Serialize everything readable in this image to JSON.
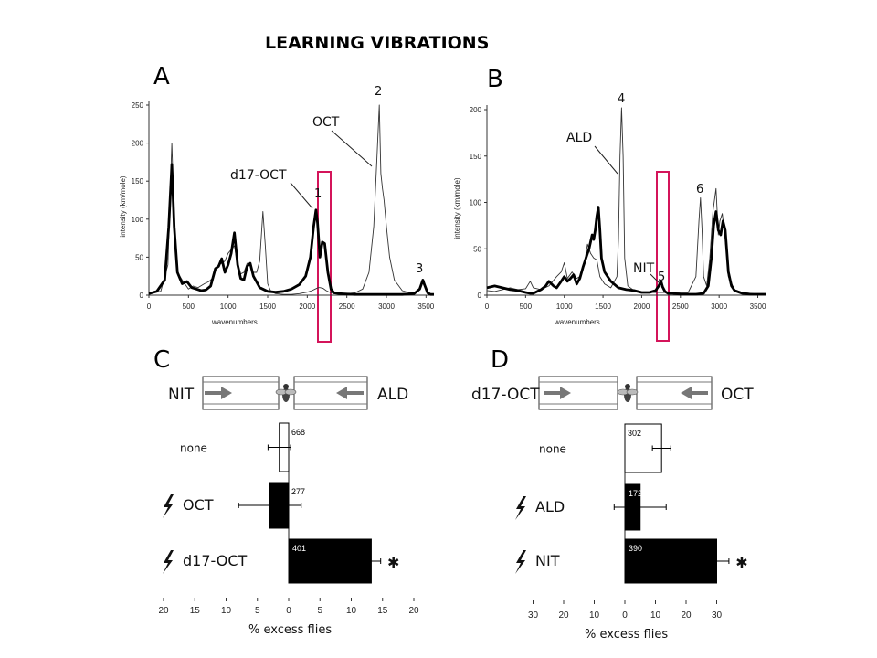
{
  "title": "LEARNING VIBRATIONS",
  "panels": {
    "A": {
      "letter": "A",
      "ylabel": "intensity (km/mole)",
      "xlabel": "wavenumbers",
      "labels": {
        "oct": "OCT",
        "d17": "d17-OCT",
        "p1": "1",
        "p2": "2",
        "p3": "3"
      }
    },
    "B": {
      "letter": "B",
      "ylabel": "intensity (km/mole)",
      "xlabel": "wavenumbers",
      "labels": {
        "ald": "ALD",
        "nit": "NIT",
        "p4": "4",
        "p5": "5",
        "p6": "6"
      }
    },
    "C": {
      "letter": "C",
      "left_odor": "NIT",
      "right_odor": "ALD",
      "xlabel": "% excess flies"
    },
    "D": {
      "letter": "D",
      "left_odor": "d17-OCT",
      "right_odor": "OCT",
      "xlabel": "% excess flies"
    }
  },
  "colors": {
    "highlight": "#d4145a",
    "bar_fill": "#000000",
    "arrow": "#777777"
  },
  "chart_data": [
    {
      "id": "A",
      "type": "line",
      "xlabel": "wavenumbers",
      "ylabel": "intensity (km/mole)",
      "xlim": [
        0,
        3600
      ],
      "ylim": [
        0,
        250
      ],
      "xticks": [
        0,
        500,
        1000,
        1500,
        2000,
        2500,
        3000,
        3500
      ],
      "yticks": [
        0,
        50,
        100,
        150,
        200,
        250
      ],
      "highlight_band": [
        2160,
        2310
      ],
      "series": [
        {
          "style": "thin",
          "label": "OCT",
          "x": [
            0,
            150,
            240,
            290,
            320,
            360,
            420,
            500,
            560,
            620,
            700,
            760,
            800,
            840,
            880,
            920,
            960,
            1000,
            1040,
            1080,
            1120,
            1160,
            1200,
            1240,
            1280,
            1320,
            1360,
            1400,
            1440,
            1470,
            1500,
            1540,
            1600,
            1700,
            1800,
            1900,
            2000,
            2060,
            2100,
            2140,
            2160,
            2200,
            2240,
            2300,
            2400,
            2500,
            2600,
            2700,
            2780,
            2840,
            2880,
            2910,
            2930,
            2950,
            2970,
            3000,
            3040,
            3100,
            3200,
            3300,
            3400,
            3440,
            3470,
            3500,
            3550,
            3600
          ],
          "y": [
            3,
            5,
            40,
            200,
            100,
            30,
            20,
            8,
            12,
            10,
            15,
            18,
            22,
            35,
            40,
            42,
            45,
            55,
            60,
            65,
            40,
            28,
            30,
            42,
            40,
            30,
            30,
            45,
            110,
            65,
            15,
            5,
            2,
            1,
            1,
            2,
            4,
            6,
            8,
            10,
            10,
            9,
            6,
            3,
            2,
            2,
            3,
            8,
            30,
            90,
            180,
            250,
            160,
            140,
            125,
            90,
            50,
            20,
            6,
            3,
            5,
            12,
            20,
            8,
            2,
            1
          ]
        },
        {
          "style": "thick",
          "label": "d17-OCT",
          "x": [
            0,
            100,
            200,
            250,
            290,
            320,
            360,
            420,
            480,
            540,
            600,
            660,
            720,
            780,
            840,
            880,
            920,
            960,
            1000,
            1040,
            1080,
            1120,
            1160,
            1200,
            1240,
            1280,
            1320,
            1400,
            1500,
            1600,
            1700,
            1800,
            1900,
            1980,
            2040,
            2080,
            2110,
            2130,
            2160,
            2190,
            2220,
            2260,
            2300,
            2340,
            2400,
            2600,
            2800,
            3000,
            3200,
            3350,
            3420,
            3460,
            3480,
            3520,
            3560,
            3600
          ],
          "y": [
            2,
            5,
            20,
            90,
            172,
            90,
            30,
            15,
            18,
            10,
            8,
            6,
            7,
            12,
            35,
            38,
            48,
            30,
            40,
            55,
            82,
            40,
            22,
            20,
            38,
            42,
            25,
            10,
            5,
            4,
            5,
            8,
            14,
            25,
            50,
            90,
            112,
            95,
            50,
            70,
            68,
            30,
            8,
            3,
            2,
            1,
            1,
            1,
            1,
            2,
            8,
            20,
            14,
            3,
            1,
            1
          ]
        }
      ]
    },
    {
      "id": "B",
      "type": "line",
      "xlabel": "wavenumbers",
      "ylabel": "intensity (km/mole)",
      "xlim": [
        0,
        3600
      ],
      "ylim": [
        0,
        200
      ],
      "xticks": [
        0,
        500,
        1000,
        1500,
        2000,
        2500,
        3000,
        3500
      ],
      "yticks": [
        0,
        50,
        100,
        150,
        200
      ],
      "highlight_band": [
        2200,
        2320
      ],
      "series": [
        {
          "style": "thin",
          "label": "ALD",
          "x": [
            0,
            100,
            200,
            300,
            400,
            500,
            560,
            600,
            700,
            800,
            900,
            960,
            1000,
            1040,
            1100,
            1160,
            1200,
            1260,
            1300,
            1340,
            1380,
            1420,
            1460,
            1520,
            1600,
            1680,
            1700,
            1720,
            1740,
            1760,
            1780,
            1820,
            1900,
            2000,
            2100,
            2200,
            2400,
            2600,
            2700,
            2740,
            2760,
            2780,
            2800,
            2840,
            2880,
            2920,
            2960,
            2990,
            3010,
            3040,
            3080,
            3120,
            3200,
            3300,
            3400,
            3500,
            3600
          ],
          "y": [
            5,
            4,
            6,
            8,
            6,
            7,
            15,
            8,
            6,
            10,
            20,
            25,
            35,
            18,
            25,
            18,
            20,
            35,
            55,
            45,
            40,
            38,
            20,
            12,
            8,
            20,
            60,
            150,
            202,
            150,
            40,
            10,
            5,
            3,
            3,
            3,
            3,
            3,
            20,
            80,
            105,
            70,
            20,
            10,
            40,
            90,
            115,
            65,
            80,
            88,
            60,
            20,
            6,
            3,
            2,
            1,
            1
          ]
        },
        {
          "style": "thick",
          "label": "NIT",
          "x": [
            0,
            100,
            200,
            300,
            400,
            500,
            560,
            600,
            650,
            700,
            760,
            800,
            860,
            900,
            960,
            1000,
            1040,
            1080,
            1120,
            1160,
            1200,
            1240,
            1280,
            1320,
            1360,
            1380,
            1400,
            1420,
            1440,
            1460,
            1480,
            1520,
            1600,
            1700,
            1800,
            1900,
            2000,
            2100,
            2180,
            2220,
            2250,
            2270,
            2300,
            2340,
            2400,
            2500,
            2600,
            2700,
            2800,
            2860,
            2900,
            2930,
            2960,
            2990,
            3020,
            3050,
            3080,
            3120,
            3160,
            3200,
            3300,
            3400,
            3500,
            3600
          ],
          "y": [
            8,
            10,
            8,
            6,
            5,
            3,
            2,
            2,
            4,
            6,
            10,
            15,
            10,
            8,
            15,
            20,
            15,
            18,
            22,
            12,
            18,
            30,
            40,
            50,
            65,
            60,
            70,
            85,
            95,
            70,
            40,
            25,
            15,
            8,
            6,
            5,
            3,
            3,
            5,
            10,
            15,
            9,
            4,
            2,
            2,
            1,
            1,
            1,
            2,
            10,
            40,
            75,
            90,
            70,
            65,
            80,
            70,
            25,
            10,
            5,
            2,
            1,
            1,
            1
          ]
        }
      ]
    },
    {
      "id": "C",
      "type": "bar",
      "orientation": "horizontal",
      "xlabel": "% excess flies",
      "xticks": [
        "20",
        "15",
        "10",
        "5",
        "0",
        "5",
        "10",
        "15",
        "20"
      ],
      "xlim": [
        -20,
        20
      ],
      "categories": [
        "none",
        "OCT",
        "d17-OCT"
      ],
      "values": [
        -1.5,
        -3.0,
        13.2
      ],
      "errors": [
        1.8,
        5.0,
        1.5
      ],
      "n_labels": [
        "668",
        "277",
        "401"
      ],
      "fills": [
        "white",
        "black",
        "black"
      ],
      "shock": [
        false,
        true,
        true
      ],
      "significance": [
        false,
        false,
        true
      ]
    },
    {
      "id": "D",
      "type": "bar",
      "orientation": "horizontal",
      "xlabel": "% excess flies",
      "xticks": [
        "30",
        "20",
        "10",
        "0",
        "10",
        "20",
        "30"
      ],
      "xlim": [
        -30,
        30
      ],
      "categories": [
        "none",
        "ALD",
        "NIT"
      ],
      "values": [
        12,
        5,
        30
      ],
      "errors": [
        3,
        8.5,
        4
      ],
      "n_labels": [
        "302",
        "172",
        "390"
      ],
      "fills": [
        "white",
        "black",
        "black"
      ],
      "shock": [
        false,
        true,
        true
      ],
      "significance": [
        false,
        false,
        true
      ]
    }
  ]
}
